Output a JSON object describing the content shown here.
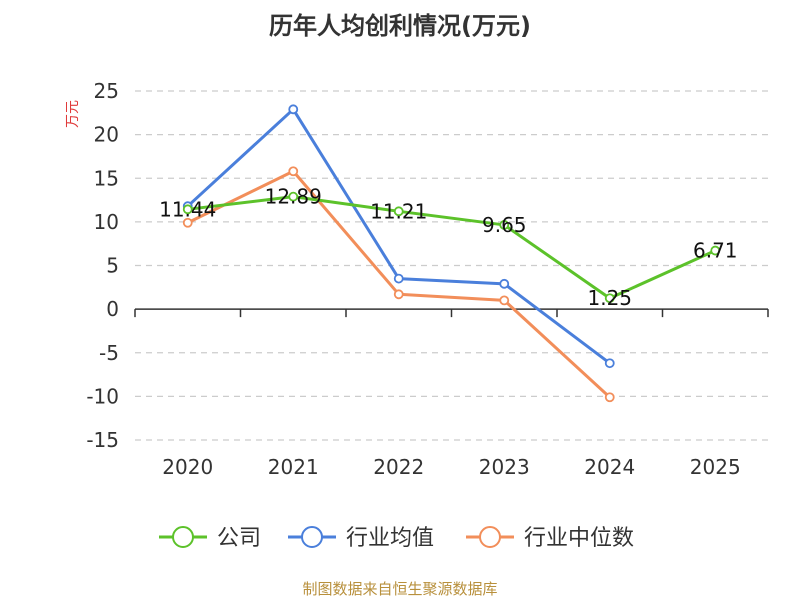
{
  "chart_data": {
    "type": "line",
    "title": "历年人均创利情况(万元)",
    "ylabel": "万元",
    "categories": [
      "2020",
      "2021",
      "2022",
      "2023",
      "2024",
      "2025"
    ],
    "ylim": [
      -15,
      25
    ],
    "yticks": [
      25,
      20,
      15,
      10,
      5,
      0,
      -5,
      -10,
      -15
    ],
    "grid": true,
    "legend_position": "bottom",
    "series": [
      {
        "name": "公司",
        "color": "#5cc22a",
        "values": [
          11.44,
          12.89,
          11.21,
          9.65,
          1.25,
          6.71
        ],
        "labels": [
          "11.44",
          "12.89",
          "11.21",
          "9.65",
          "1.25",
          "6.71"
        ]
      },
      {
        "name": "行业均值",
        "color": "#4a7fdb",
        "values": [
          11.8,
          22.9,
          3.5,
          2.9,
          -6.2,
          null
        ]
      },
      {
        "name": "行业中位数",
        "color": "#f28e5a",
        "values": [
          9.9,
          15.8,
          1.7,
          1.0,
          -10.1,
          null
        ]
      }
    ]
  },
  "footer": {
    "source": "制图数据来自恒生聚源数据库"
  }
}
